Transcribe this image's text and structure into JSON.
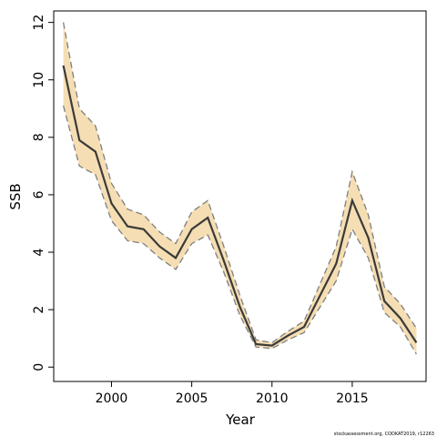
{
  "chart_data": {
    "type": "line",
    "title": "",
    "xlabel": "Year",
    "ylabel": "SSB",
    "xlim": [
      1996.4,
      2019.6
    ],
    "ylim": [
      -0.5,
      12.4
    ],
    "xticks": [
      2000,
      2005,
      2010,
      2015
    ],
    "yticks": [
      0,
      2,
      4,
      6,
      8,
      10,
      12
    ],
    "grid": false,
    "legend": "none",
    "colors": {
      "band": "#f5deb3",
      "bounds": "#7f7f7f",
      "estimate": "#3a3a3a",
      "frame": "#000000"
    },
    "x": [
      1997,
      1998,
      1999,
      2000,
      2001,
      2002,
      2003,
      2004,
      2005,
      2006,
      2007,
      2008,
      2009,
      2010,
      2011,
      2012,
      2013,
      2014,
      2015,
      2016,
      2017,
      2018,
      2019
    ],
    "series": [
      {
        "role": "estimate",
        "values": [
          10.5,
          7.9,
          7.5,
          5.7,
          4.9,
          4.8,
          4.2,
          3.8,
          4.8,
          5.2,
          3.7,
          2.1,
          0.8,
          0.75,
          1.1,
          1.4,
          2.5,
          3.6,
          5.8,
          4.5,
          2.3,
          1.7,
          0.85
        ]
      },
      {
        "role": "upper",
        "values": [
          12.0,
          9.0,
          8.4,
          6.4,
          5.5,
          5.3,
          4.7,
          4.3,
          5.4,
          5.8,
          4.2,
          2.5,
          0.95,
          0.85,
          1.25,
          1.6,
          2.9,
          4.2,
          6.8,
          5.3,
          2.8,
          2.2,
          1.35
        ]
      },
      {
        "role": "lower",
        "values": [
          9.1,
          7.0,
          6.7,
          5.1,
          4.4,
          4.3,
          3.8,
          3.4,
          4.3,
          4.6,
          3.3,
          1.8,
          0.7,
          0.65,
          0.95,
          1.2,
          2.1,
          3.0,
          4.8,
          3.8,
          1.9,
          1.4,
          0.45
        ]
      }
    ]
  },
  "footnote": "stockassessment.org, CODKAT2019, r12263"
}
